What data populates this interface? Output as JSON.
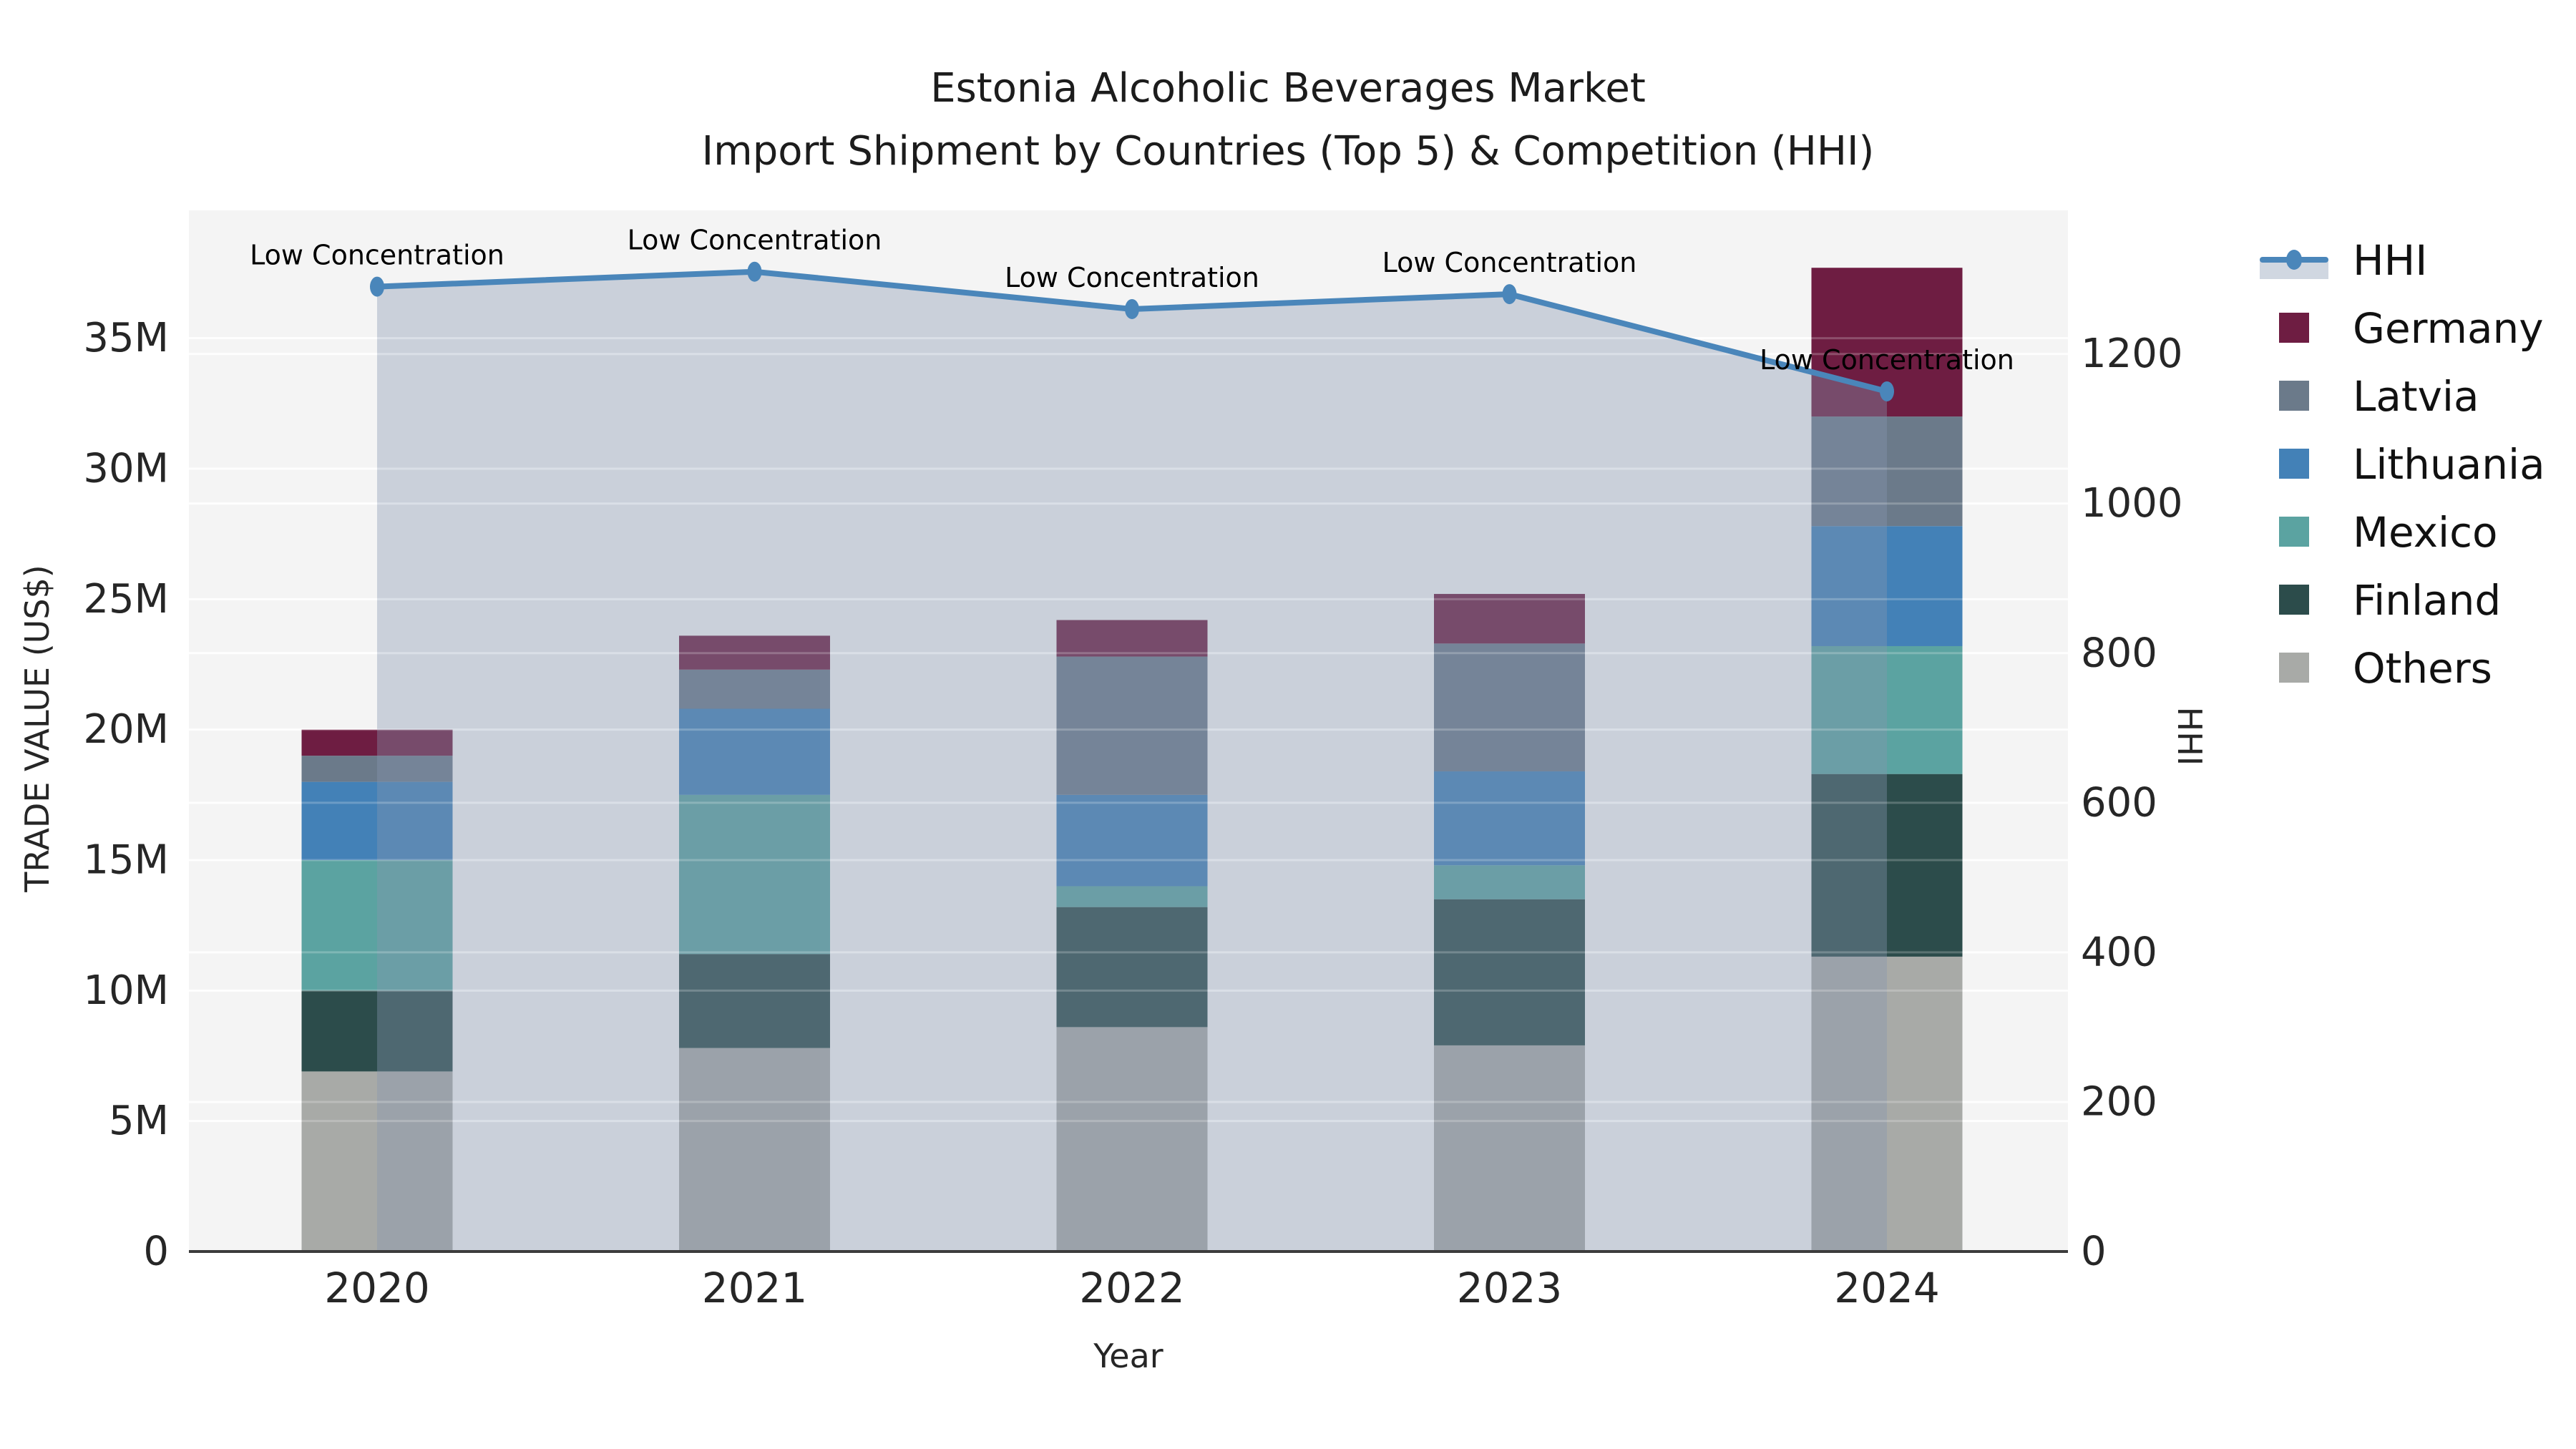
{
  "title": {
    "line1": "Estonia Alcoholic Beverages Market",
    "line2": "Import Shipment by Countries (Top 5) & Competition (HHI)"
  },
  "axes": {
    "x": {
      "title": "Year"
    },
    "y_left": {
      "title": "TRADE VALUE (US$)"
    },
    "y_right": {
      "title": "HHI"
    }
  },
  "legend": {
    "items": [
      {
        "label": "HHI",
        "type": "line",
        "color": "#4a86ba",
        "fill_swatch": "#d0d7e1"
      },
      {
        "label": "Germany",
        "type": "square",
        "color": "#6e1d42"
      },
      {
        "label": "Latvia",
        "type": "square",
        "color": "#6b7a8a"
      },
      {
        "label": "Lithuania",
        "type": "square",
        "color": "#4381b7"
      },
      {
        "label": "Mexico",
        "type": "square",
        "color": "#5ba3a1"
      },
      {
        "label": "Finland",
        "type": "square",
        "color": "#2c4c4b"
      },
      {
        "label": "Others",
        "type": "square",
        "color": "#a8aaa7"
      }
    ]
  },
  "chart_data": {
    "type": "bar",
    "subtype": "stacked-bars-with-line",
    "title": "Estonia Alcoholic Beverages Market — Import Shipment by Countries (Top 5) & Competition (HHI)",
    "xlabel": "Year",
    "ylabel_left": "TRADE VALUE (US$)",
    "ylabel_right": "HHI",
    "categories": [
      "2020",
      "2021",
      "2022",
      "2023",
      "2024"
    ],
    "value_unit": "millions USD",
    "series": [
      {
        "name": "Others",
        "color": "#a8aaa7",
        "values": [
          6.9,
          7.8,
          8.6,
          7.9,
          11.3
        ]
      },
      {
        "name": "Finland",
        "color": "#2c4c4b",
        "values": [
          3.1,
          3.6,
          4.6,
          5.6,
          7.0
        ]
      },
      {
        "name": "Mexico",
        "color": "#5ba3a1",
        "values": [
          5.0,
          6.1,
          0.8,
          1.3,
          4.9
        ]
      },
      {
        "name": "Lithuania",
        "color": "#4381b7",
        "values": [
          3.0,
          3.3,
          3.5,
          3.6,
          4.6
        ]
      },
      {
        "name": "Latvia",
        "color": "#6b7a8a",
        "values": [
          1.0,
          1.5,
          5.3,
          4.9,
          4.2
        ]
      },
      {
        "name": "Germany",
        "color": "#6e1d42",
        "values": [
          1.0,
          1.3,
          1.4,
          1.9,
          5.7
        ]
      }
    ],
    "stack_totals_millions": [
      20.0,
      23.6,
      24.2,
      25.2,
      37.7
    ],
    "line_series": {
      "name": "HHI",
      "color": "#4a86ba",
      "area_fill": "rgba(133,150,175,0.38)",
      "values": [
        1290,
        1310,
        1260,
        1280,
        1150
      ],
      "annotations": [
        "Low Concentration",
        "Low Concentration",
        "Low Concentration",
        "Low Concentration",
        "Low Concentration"
      ]
    },
    "y_left_ticks": {
      "labels": [
        "0",
        "5M",
        "10M",
        "15M",
        "20M",
        "25M",
        "30M",
        "35M"
      ],
      "values_millions": [
        0,
        5,
        10,
        15,
        20,
        25,
        30,
        35
      ]
    },
    "y_right_ticks": {
      "labels": [
        "0",
        "200",
        "400",
        "600",
        "800",
        "1000",
        "1200"
      ],
      "values": [
        0,
        200,
        400,
        600,
        800,
        1000,
        1200
      ]
    },
    "ylim_left_millions": [
      0,
      39.9
    ],
    "ylim_right": [
      0,
      1392
    ],
    "grid": true,
    "plot_background": "#f4f4f4",
    "grid_color": "#ffffff",
    "axis_line_color": "#3c3c3c",
    "tick_label_color": "#262626",
    "annotation_color": "#000000",
    "legend_position": "right"
  }
}
